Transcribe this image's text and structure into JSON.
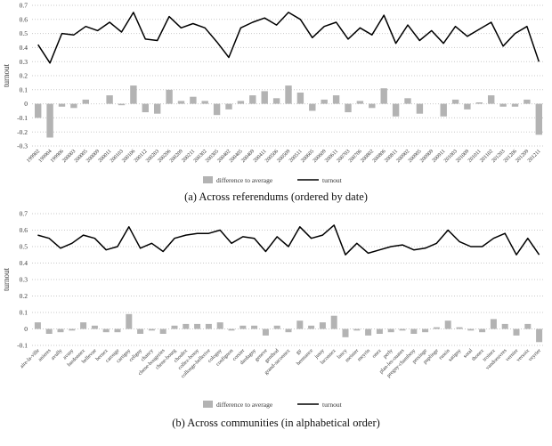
{
  "figure": {
    "ylabel": "turnout",
    "colors": {
      "bar": "#b3b3b3",
      "line": "#000000",
      "grid": "#c9c9c9",
      "text": "#333333"
    }
  },
  "chart_data": [
    {
      "type": "bar+line",
      "caption": "(a) Across referendums (ordered by date)",
      "ylabel": "turnout",
      "ylim": [
        -0.3,
        0.7
      ],
      "ytick_step": 0.1,
      "grid": true,
      "legend_position": "bottom",
      "categories": [
        "199902",
        "199904",
        "199906",
        "200003",
        "200005",
        "200009",
        "200011",
        "200103",
        "200106",
        "200112",
        "200203",
        "200206",
        "200209",
        "200211",
        "200302",
        "200305",
        "200402",
        "200405",
        "200409",
        "200411",
        "200506",
        "200509",
        "200511",
        "200605",
        "200609",
        "200611",
        "200703",
        "200706",
        "200802",
        "200806",
        "200811",
        "200902",
        "200905",
        "200909",
        "200911",
        "201003",
        "201009",
        "201011",
        "201102",
        "201203",
        "201206",
        "201209",
        "201211"
      ],
      "series": [
        {
          "name": "difference to average",
          "type": "bar",
          "values": [
            -0.1,
            -0.24,
            -0.02,
            -0.03,
            0.03,
            0.0,
            0.06,
            -0.01,
            0.13,
            -0.06,
            -0.07,
            0.1,
            0.02,
            0.05,
            0.02,
            -0.08,
            -0.04,
            0.02,
            0.06,
            0.09,
            0.04,
            0.13,
            0.08,
            -0.05,
            0.03,
            0.06,
            -0.06,
            0.02,
            -0.03,
            0.11,
            -0.09,
            0.04,
            -0.07,
            0.0,
            -0.09,
            0.03,
            -0.04,
            0.01,
            0.06,
            -0.02,
            -0.02,
            0.03,
            -0.22
          ]
        },
        {
          "name": "turnout",
          "type": "line",
          "values": [
            0.42,
            0.29,
            0.5,
            0.49,
            0.55,
            0.52,
            0.58,
            0.51,
            0.65,
            0.46,
            0.45,
            0.62,
            0.54,
            0.57,
            0.54,
            0.44,
            0.33,
            0.54,
            0.58,
            0.61,
            0.56,
            0.65,
            0.6,
            0.47,
            0.55,
            0.58,
            0.46,
            0.54,
            0.49,
            0.63,
            0.43,
            0.56,
            0.45,
            0.52,
            0.43,
            0.55,
            0.48,
            0.53,
            0.58,
            0.41,
            0.5,
            0.55,
            0.3
          ]
        }
      ]
    },
    {
      "type": "bar+line",
      "caption": "(b) Across communities (in alphabetical order)",
      "ylabel": "turnout",
      "ylim": [
        -0.1,
        0.7
      ],
      "ytick_step": 0.1,
      "grid": true,
      "legend_position": "bottom",
      "categories": [
        "aire-la-ville",
        "anieres",
        "avully",
        "avusy",
        "bardonnex",
        "bellevue",
        "bernex",
        "carouge",
        "cartigny",
        "celigny",
        "chancy",
        "chene-bougeries",
        "chene-bourg",
        "choulex",
        "collex-bossy",
        "collonge-bellerive",
        "cologny",
        "confignon",
        "corsier",
        "dardagny",
        "geneve",
        "genthod",
        "grand-saconnex",
        "gy",
        "hermance",
        "jussy",
        "laconnex",
        "lancy",
        "meinier",
        "meyrin",
        "onex",
        "perly",
        "plan-les-ouates",
        "pregny-chambesy",
        "presinge",
        "puplinge",
        "russin",
        "satigny",
        "soral",
        "thonex",
        "troinex",
        "vandoeuvres",
        "vernier",
        "versoix",
        "veyrier"
      ],
      "series": [
        {
          "name": "difference to average",
          "type": "bar",
          "values": [
            0.04,
            -0.03,
            -0.02,
            -0.01,
            0.04,
            0.02,
            -0.02,
            -0.02,
            0.09,
            -0.03,
            -0.01,
            -0.03,
            0.02,
            0.03,
            0.03,
            0.03,
            0.04,
            -0.01,
            0.02,
            0.02,
            -0.04,
            0.02,
            -0.02,
            0.05,
            0.02,
            0.04,
            0.08,
            -0.05,
            -0.01,
            -0.04,
            -0.03,
            -0.02,
            -0.01,
            -0.03,
            -0.02,
            0.01,
            0.05,
            0.01,
            -0.01,
            -0.02,
            0.06,
            0.03,
            -0.04,
            0.03,
            -0.08
          ]
        },
        {
          "name": "turnout",
          "type": "line",
          "values": [
            0.57,
            0.55,
            0.49,
            0.52,
            0.57,
            0.55,
            0.48,
            0.5,
            0.62,
            0.49,
            0.52,
            0.47,
            0.55,
            0.57,
            0.58,
            0.58,
            0.6,
            0.52,
            0.56,
            0.55,
            0.47,
            0.56,
            0.5,
            0.62,
            0.55,
            0.57,
            0.63,
            0.45,
            0.52,
            0.46,
            0.48,
            0.5,
            0.51,
            0.48,
            0.49,
            0.52,
            0.6,
            0.53,
            0.5,
            0.5,
            0.55,
            0.58,
            0.45,
            0.55,
            0.45
          ]
        }
      ]
    }
  ]
}
